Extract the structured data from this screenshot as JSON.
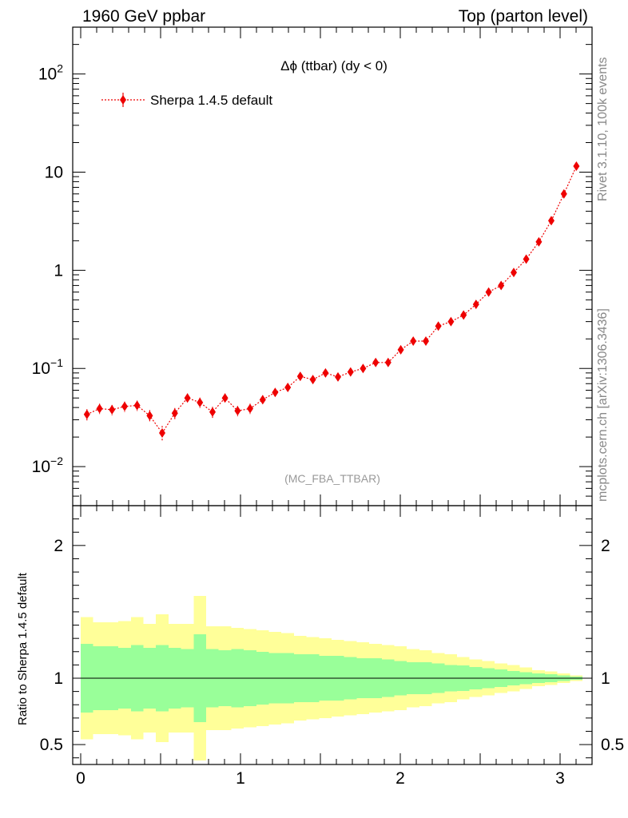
{
  "header": {
    "left_title": "1960 GeV ppbar",
    "right_title": "Top (parton level)"
  },
  "side_labels": {
    "rivet": "Rivet 3.1.10,  100k events",
    "mcplots": "mcplots.cern.ch [arXiv:1306.3436]"
  },
  "chart_data": [
    {
      "type": "scatter",
      "title": "Δϕ (ttbar) (dy < 0)",
      "watermark": "(MC_FBA_TTBAR)",
      "legend": {
        "position": "top-left",
        "entries": [
          "Sherpa 1.4.5 default"
        ]
      },
      "y_scale": "log",
      "xlim": [
        -0.05,
        3.2
      ],
      "ylim": [
        0.004,
        300
      ],
      "y_ticks": [
        {
          "value": 0.01,
          "base": "10",
          "exp": "−2"
        },
        {
          "value": 0.1,
          "base": "10",
          "exp": "−1"
        },
        {
          "value": 1,
          "base": "1",
          "exp": ""
        },
        {
          "value": 10,
          "base": "10",
          "exp": ""
        },
        {
          "value": 100,
          "base": "10",
          "exp": "2"
        }
      ],
      "colors": {
        "marker": "#ee0000",
        "line": "#ee0000"
      },
      "series": [
        {
          "name": "Sherpa 1.4.5 default",
          "x": [
            0.039,
            0.118,
            0.196,
            0.275,
            0.353,
            0.432,
            0.51,
            0.589,
            0.668,
            0.746,
            0.825,
            0.903,
            0.982,
            1.06,
            1.139,
            1.217,
            1.296,
            1.374,
            1.453,
            1.532,
            1.61,
            1.689,
            1.767,
            1.846,
            1.924,
            2.003,
            2.081,
            2.16,
            2.238,
            2.317,
            2.396,
            2.474,
            2.553,
            2.631,
            2.71,
            2.788,
            2.867,
            2.945,
            3.024,
            3.102
          ],
          "y": [
            0.034,
            0.039,
            0.038,
            0.041,
            0.042,
            0.033,
            0.022,
            0.035,
            0.05,
            0.045,
            0.036,
            0.05,
            0.037,
            0.039,
            0.048,
            0.057,
            0.064,
            0.083,
            0.077,
            0.09,
            0.082,
            0.092,
            0.1,
            0.115,
            0.115,
            0.155,
            0.19,
            0.19,
            0.27,
            0.3,
            0.35,
            0.45,
            0.6,
            0.7,
            0.95,
            1.3,
            1.95,
            3.2,
            6.0,
            11.5
          ],
          "err_rel": [
            0.13,
            0.12,
            0.12,
            0.12,
            0.12,
            0.14,
            0.18,
            0.13,
            0.11,
            0.12,
            0.13,
            0.11,
            0.12,
            0.12,
            0.11,
            0.1,
            0.1,
            0.09,
            0.09,
            0.09,
            0.09,
            0.08,
            0.08,
            0.08,
            0.07,
            0.07,
            0.06,
            0.06,
            0.05,
            0.05,
            0.05,
            0.04,
            0.04,
            0.04,
            0.03,
            0.03,
            0.03,
            0.02,
            0.02,
            0.02
          ]
        }
      ]
    },
    {
      "type": "area",
      "ylabel": "Ratio to Sherpa 1.4.5 default",
      "xlim": [
        -0.05,
        3.2
      ],
      "ylim": [
        0.35,
        2.3
      ],
      "y_ticks": [
        0.5,
        1,
        2
      ],
      "x_ticks": [
        0,
        1,
        2,
        3
      ],
      "reference_line": 1,
      "colors": {
        "inner_band": "#99ff99",
        "outer_band": "#ffff99",
        "reference": "#000000"
      },
      "bin_edges": [
        0,
        0.0785,
        0.157,
        0.2355,
        0.314,
        0.3925,
        0.471,
        0.5495,
        0.628,
        0.7065,
        0.785,
        0.8635,
        0.942,
        1.0205,
        1.099,
        1.1775,
        1.256,
        1.3345,
        1.413,
        1.4915,
        1.57,
        1.6485,
        1.727,
        1.8055,
        1.884,
        1.9625,
        2.041,
        2.1195,
        2.198,
        2.2765,
        2.355,
        2.4335,
        2.512,
        2.5905,
        2.669,
        2.7475,
        2.826,
        2.9045,
        2.983,
        3.0615,
        3.14
      ],
      "inner_band": [
        0.26,
        0.24,
        0.24,
        0.23,
        0.25,
        0.23,
        0.25,
        0.23,
        0.22,
        0.33,
        0.22,
        0.21,
        0.22,
        0.21,
        0.2,
        0.19,
        0.19,
        0.18,
        0.18,
        0.17,
        0.17,
        0.16,
        0.15,
        0.15,
        0.14,
        0.13,
        0.12,
        0.12,
        0.11,
        0.1,
        0.095,
        0.085,
        0.075,
        0.065,
        0.055,
        0.045,
        0.035,
        0.03,
        0.02,
        0.012
      ],
      "outer_band": [
        0.46,
        0.42,
        0.42,
        0.43,
        0.46,
        0.41,
        0.48,
        0.41,
        0.41,
        0.62,
        0.39,
        0.39,
        0.38,
        0.37,
        0.36,
        0.35,
        0.34,
        0.32,
        0.31,
        0.3,
        0.29,
        0.28,
        0.27,
        0.26,
        0.25,
        0.24,
        0.22,
        0.21,
        0.19,
        0.18,
        0.16,
        0.14,
        0.13,
        0.11,
        0.1,
        0.08,
        0.06,
        0.05,
        0.035,
        0.02
      ]
    }
  ]
}
